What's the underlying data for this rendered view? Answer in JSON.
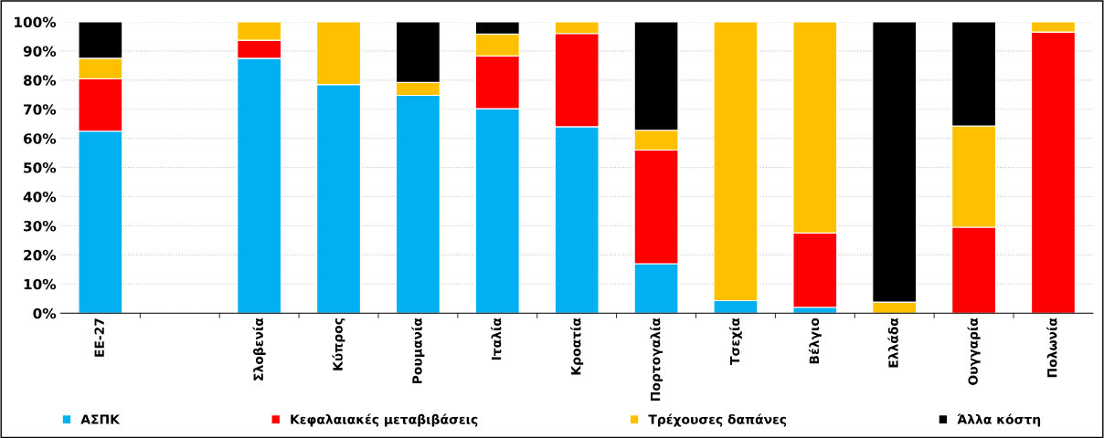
{
  "chart_data": {
    "type": "bar",
    "stacked": true,
    "categories": [
      "ΕΕ-27",
      null,
      "Σλοβενία",
      "Κύπρος",
      "Ρουμανία",
      "Ιταλία",
      "Κροατία",
      "Πορτογαλία",
      "Τσεχία",
      "Βέλγιο",
      "Ελλάδα",
      "Ουγγαρία",
      "Πολωνία"
    ],
    "series": [
      {
        "name": "ΑΣΠΚ",
        "color": "#00b0f0",
        "values": [
          62.5,
          null,
          87.5,
          78.5,
          74.8,
          70.2,
          64,
          17,
          4.3,
          2,
          null,
          null,
          null
        ]
      },
      {
        "name": "Κεφαλαιακές μεταβιβάσεις",
        "color": "#ff0000",
        "values": [
          18,
          null,
          6.2,
          null,
          null,
          18.1,
          32,
          39,
          null,
          25.5,
          null,
          29.5,
          96.5
        ]
      },
      {
        "name": "Τρέχουσες δαπάνες",
        "color": "#ffc000",
        "values": [
          7,
          null,
          6.3,
          21.5,
          4.4,
          7.5,
          4,
          6.8,
          95.7,
          72.5,
          3.8,
          34.8,
          3.5
        ]
      },
      {
        "name": "Άλλα κόστη",
        "color": "#000000",
        "values": [
          12.5,
          null,
          null,
          null,
          20.8,
          4.2,
          null,
          37.2,
          null,
          null,
          96.2,
          35.7,
          null
        ]
      }
    ],
    "ylim": [
      0,
      100
    ],
    "yticks": [
      {
        "value": 0,
        "label": "0%"
      },
      {
        "value": 10,
        "label": "10%"
      },
      {
        "value": 20,
        "label": "20%"
      },
      {
        "value": 30,
        "label": "30%"
      },
      {
        "value": 40,
        "label": "40%"
      },
      {
        "value": 50,
        "label": "50%"
      },
      {
        "value": 60,
        "label": "60%"
      },
      {
        "value": 70,
        "label": "70%"
      },
      {
        "value": 80,
        "label": "80%"
      },
      {
        "value": 90,
        "label": "90%"
      },
      {
        "value": 100,
        "label": "100%"
      }
    ],
    "grid": "y",
    "legend": "bottom"
  }
}
